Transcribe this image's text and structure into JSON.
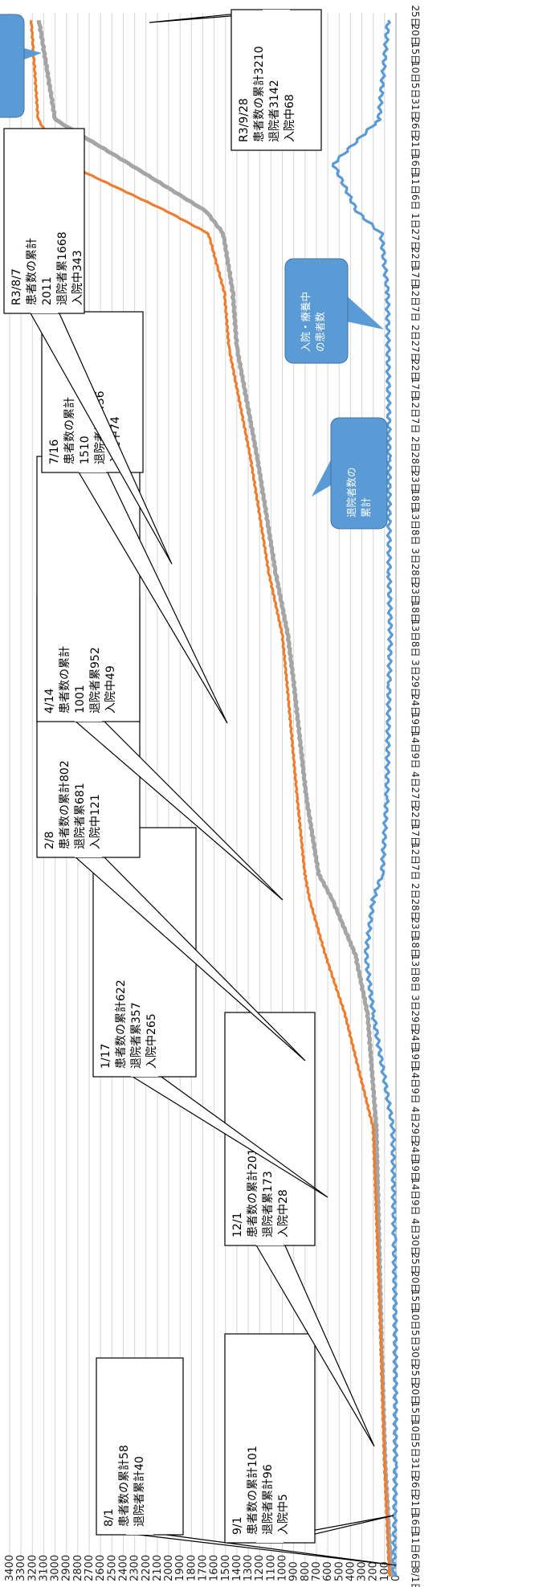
{
  "chart_data": {
    "type": "line",
    "orientation": "rotated-90-clockwise",
    "ylim": [
      0,
      3400
    ],
    "y_ticks": [
      0,
      100,
      200,
      300,
      400,
      500,
      600,
      700,
      800,
      900,
      1000,
      1100,
      1200,
      1300,
      1400,
      1500,
      1600,
      1700,
      1800,
      1900,
      2000,
      2100,
      2200,
      2300,
      2400,
      2500,
      2600,
      2700,
      2800,
      2900,
      3000,
      3100,
      3200,
      3300,
      3400
    ],
    "x_tick_labels": [
      "8/1日",
      "6日",
      "11日",
      "16日",
      "21日",
      "26日",
      "31日",
      "5日",
      "10日",
      "15日",
      "20日",
      "25日",
      "30日",
      "5日",
      "10日",
      "15日",
      "20日",
      "25日",
      "30日",
      "4日",
      "9日",
      "14日",
      "19日",
      "24日",
      "29日",
      "4日",
      "9日",
      "14日",
      "19日",
      "24日",
      "29日",
      "3日",
      "8日",
      "13日",
      "18日",
      "23日",
      "28日",
      "2日",
      "7日",
      "12日",
      "17日",
      "22日",
      "27日",
      "4日",
      "9日",
      "14日",
      "19日",
      "24日",
      "29日",
      "3日",
      "8日",
      "13日",
      "18日",
      "23日",
      "28日",
      "3日",
      "8日",
      "13日",
      "18日",
      "23日",
      "28日",
      "2日",
      "7日",
      "12日",
      "17日",
      "22日",
      "27日",
      "2日",
      "7日",
      "12日",
      "17日",
      "22日",
      "27日",
      "1日",
      "6日",
      "11日",
      "16日",
      "21日",
      "26日",
      "31日",
      "5日",
      "10日",
      "15日",
      "20日",
      "25日"
    ],
    "series": [
      {
        "key": "cumulative",
        "color": "#ED7D31",
        "x": [
          "8/1",
          "9/1",
          "10/1",
          "11/1",
          "12/1",
          "1/1",
          "1/17",
          "2/1",
          "2/8",
          "3/1",
          "4/1",
          "4/14",
          "5/1",
          "6/1",
          "7/1",
          "7/16",
          "8/1",
          "8/7",
          "8/20",
          "9/1",
          "9/28"
        ],
        "values": [
          58,
          101,
          130,
          165,
          201,
          450,
          622,
          760,
          802,
          870,
          960,
          1001,
          1120,
          1280,
          1470,
          1510,
          1650,
          2011,
          2900,
          3150,
          3210
        ]
      },
      {
        "key": "discharged",
        "name": "退院者数の累計",
        "color": "#A5A5A5",
        "x": [
          "8/1",
          "9/1",
          "10/1",
          "11/1",
          "12/1",
          "1/1",
          "1/17",
          "2/1",
          "2/8",
          "3/1",
          "4/1",
          "4/14",
          "5/1",
          "6/1",
          "7/1",
          "7/16",
          "8/1",
          "8/7",
          "8/20",
          "9/1",
          "9/28"
        ],
        "values": [
          40,
          96,
          125,
          150,
          173,
          250,
          357,
          560,
          681,
          790,
          900,
          952,
          1060,
          1220,
          1400,
          1436,
          1520,
          1668,
          2350,
          3000,
          3142
        ]
      },
      {
        "key": "hospitalized",
        "name": "入院・療養中の患者数",
        "color": "#5B9BD5",
        "x": [
          "8/1",
          "9/1",
          "10/1",
          "11/1",
          "12/1",
          "1/1",
          "1/17",
          "2/1",
          "2/8",
          "3/1",
          "4/1",
          "4/14",
          "5/1",
          "6/1",
          "7/1",
          "7/16",
          "8/1",
          "8/7",
          "8/20",
          "9/1",
          "9/28"
        ],
        "values": [
          18,
          5,
          5,
          15,
          28,
          200,
          265,
          200,
          121,
          80,
          60,
          49,
          60,
          60,
          70,
          74,
          130,
          343,
          550,
          150,
          68
        ]
      }
    ],
    "callouts": [
      {
        "lines": [
          "8/1",
          "患者数の累計58",
          "退院者累計40"
        ],
        "x": "8/1",
        "y": 58
      },
      {
        "lines": [
          "9/1",
          "患者数の累計101",
          "退院者累計96",
          "入院中5"
        ],
        "x": "9/1",
        "y": 101
      },
      {
        "lines": [
          "12/1",
          "患者数の累計201",
          "退院者累173",
          "入院中28"
        ],
        "x": "12/1",
        "y": 201
      },
      {
        "lines": [
          "1/17",
          "患者数の累計622",
          "退院者累357",
          "入院中265"
        ],
        "x": "1/17",
        "y": 622
      },
      {
        "lines": [
          "2/8",
          "患者数の累計802",
          "退院者累681",
          "入院中121"
        ],
        "x": "2/8",
        "y": 802
      },
      {
        "lines": [
          "4/14",
          "患者数の累計",
          "1001",
          "退院者累952",
          "入院中49"
        ],
        "x": "4/14",
        "y": 1001
      },
      {
        "lines": [
          "7/16",
          "患者数の累計",
          "1510",
          "退院者累1436",
          "入院中74"
        ],
        "x": "7/16",
        "y": 1510
      },
      {
        "lines": [
          "R3/8/7",
          "患者数の累計",
          "2011",
          "退院者累1668",
          "入院中343"
        ],
        "x": "8/7",
        "y": 2011
      },
      {
        "lines": [
          "R3/9/28",
          "患者数の累計3210",
          "退院者3142",
          "入院中68"
        ],
        "x": "9/28",
        "y": 3210
      }
    ],
    "series_labels": [
      {
        "lines": [
          "入院・療養中",
          "の患者数"
        ],
        "series": "hospitalized"
      },
      {
        "lines": [
          "退院者数の",
          "累計"
        ],
        "series": "discharged"
      }
    ],
    "grid": true,
    "legend": "none"
  }
}
